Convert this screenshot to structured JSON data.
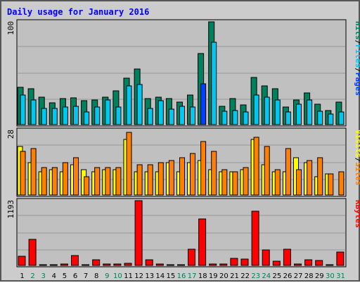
{
  "chart_data": {
    "type": "bar",
    "title": "Daily usage for January 2016",
    "categories": [
      "1",
      "2",
      "3",
      "4",
      "5",
      "6",
      "7",
      "8",
      "9",
      "10",
      "11",
      "12",
      "13",
      "14",
      "15",
      "16",
      "17",
      "18",
      "19",
      "20",
      "21",
      "22",
      "23",
      "24",
      "25",
      "26",
      "27",
      "28",
      "29",
      "30",
      "31"
    ],
    "weekend_days": [
      2,
      3,
      9,
      10,
      16,
      17,
      23,
      24,
      30,
      31
    ],
    "panels": [
      {
        "id": "hits-files-pages",
        "max_label": "100",
        "ymax": 100,
        "series": [
          {
            "name": "Hits",
            "color": "#00805c",
            "values": [
              36,
              35,
              27,
              21,
              25,
              26,
              23,
              24,
              27,
              33,
              45,
              54,
              25,
              27,
              25,
              22,
              29,
              69,
              100,
              18,
              25,
              19,
              46,
              38,
              35,
              17,
              24,
              31,
              20,
              14,
              22
            ]
          },
          {
            "name": "Files",
            "color": "#00c8f0",
            "values": [
              29,
              24,
              16,
              16,
              17,
              18,
              12,
              17,
              24,
              17,
              38,
              39,
              16,
              23,
              15,
              18,
              17,
              33,
              80,
              13,
              14,
              12,
              29,
              27,
              24,
              12,
              20,
              24,
              13,
              10,
              12
            ]
          },
          {
            "name": "Pages",
            "color": "#0040ff",
            "values": [
              0,
              0,
              0,
              0,
              0,
              0,
              0,
              0,
              0,
              0,
              0,
              0,
              0,
              0,
              0,
              0,
              0,
              40,
              0,
              0,
              0,
              0,
              0,
              0,
              0,
              0,
              0,
              0,
              0,
              0,
              0
            ]
          }
        ],
        "legend": [
          "Pages",
          "/",
          "Files",
          "/",
          "Hits"
        ]
      },
      {
        "id": "sites-visits",
        "max_label": "28",
        "ymax": 28,
        "series": [
          {
            "name": "Visits",
            "color": "#ffff00",
            "values": [
              21,
              14,
              10,
              11,
              10,
              13,
              11,
              10,
              11,
              11,
              24,
              10,
              10,
              10,
              14,
              10,
              14,
              15,
              11,
              10,
              10,
              11,
              24,
              13,
              10,
              10,
              16,
              14,
              8,
              9,
              0
            ]
          },
          {
            "name": "Sites",
            "color": "#ff8000",
            "values": [
              19,
              20,
              12,
              12,
              14,
              16,
              8,
              12,
              12,
              12,
              27,
              13,
              13,
              14,
              15,
              16,
              18,
              23,
              19,
              11,
              10,
              12,
              25,
              21,
              11,
              20,
              11,
              15,
              16,
              9,
              10
            ]
          }
        ],
        "legend": [
          "Sites",
          "/",
          "Visits"
        ]
      },
      {
        "id": "kbytes",
        "max_label": "1193",
        "ymax": 1193,
        "series": [
          {
            "name": "KBytes",
            "color": "#ff0000",
            "values": [
              175,
              485,
              5,
              10,
              20,
              180,
              10,
              110,
              25,
              25,
              40,
              1193,
              105,
              30,
              10,
              10,
              300,
              850,
              25,
              20,
              125,
              120,
              1000,
              285,
              80,
              300,
              25,
              110,
              85,
              10,
              240
            ]
          }
        ],
        "legend": [
          "KBytes"
        ]
      }
    ],
    "colors": {
      "background": "#cccccc",
      "plot_background": "#c0c0c0",
      "title": "#0000ff",
      "weekday_label": "#000000",
      "weekend_label": "#00805c"
    }
  }
}
